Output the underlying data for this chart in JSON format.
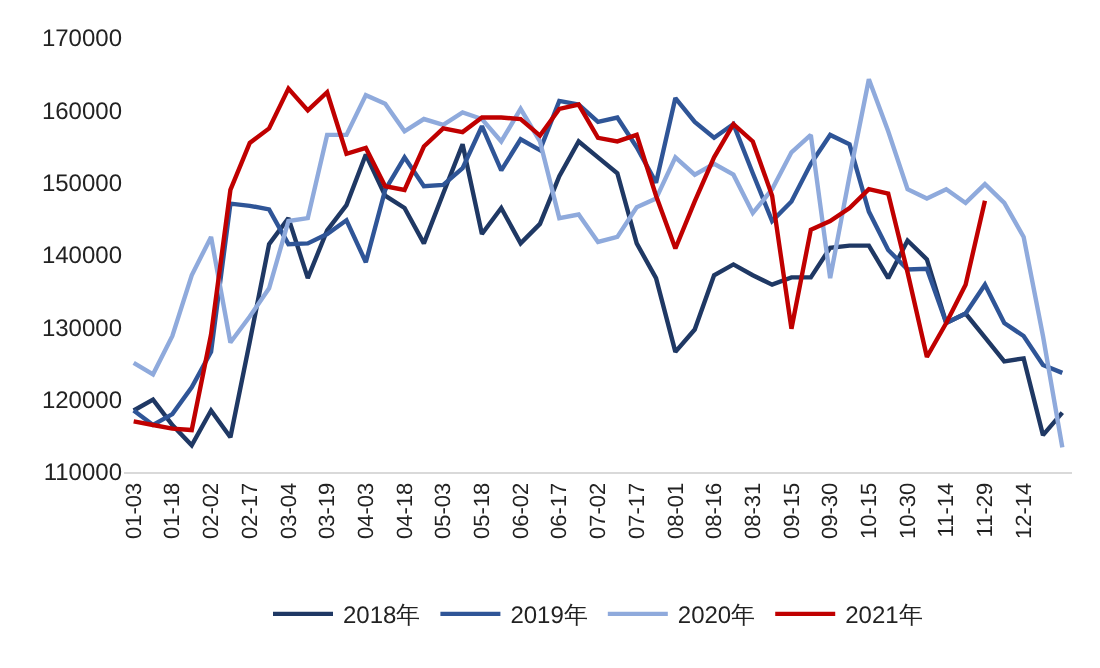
{
  "chart_data": {
    "type": "line",
    "categories": [
      "01-03",
      null,
      "01-18",
      null,
      "02-02",
      null,
      "02-17",
      null,
      "03-04",
      null,
      "03-19",
      null,
      "04-03",
      null,
      "04-18",
      null,
      "05-03",
      null,
      "05-18",
      null,
      "06-02",
      null,
      "06-17",
      null,
      "07-02",
      null,
      "07-17",
      null,
      "08-01",
      null,
      "08-16",
      null,
      "08-31",
      null,
      "09-15",
      null,
      "09-30",
      null,
      "10-15",
      null,
      "10-30",
      null,
      "11-14",
      null,
      "11-29",
      null,
      "12-14",
      null,
      null
    ],
    "ylim": [
      110000,
      170000
    ],
    "yticks": [
      110000,
      120000,
      130000,
      140000,
      150000,
      160000,
      170000
    ],
    "grid": false,
    "legend": "bottom",
    "marker": "none",
    "line_style": "solid",
    "series": [
      {
        "name": "2018年",
        "color": "#1f3864",
        "values": [
          118500,
          120000,
          116500,
          113700,
          118500,
          114800,
          128000,
          141500,
          145100,
          136800,
          143400,
          146900,
          153900,
          148200,
          146500,
          141600,
          148500,
          155300,
          142900,
          146500,
          141600,
          144300,
          150900,
          155700,
          153500,
          151300,
          141600,
          136800,
          126600,
          129700,
          137200,
          138700,
          137200,
          135900,
          136900,
          136900,
          141000,
          141300,
          141300,
          136800,
          142000,
          139400,
          130600,
          131900,
          128600,
          125300,
          125700,
          115100,
          118200
        ]
      },
      {
        "name": "2019年",
        "color": "#2f5597",
        "values": [
          118500,
          116500,
          118000,
          121700,
          126600,
          147100,
          146800,
          146300,
          141500,
          141600,
          142900,
          144800,
          139000,
          149000,
          153500,
          149500,
          149700,
          152000,
          157800,
          151700,
          156000,
          154500,
          161300,
          160800,
          158400,
          159000,
          154900,
          150000,
          161700,
          158400,
          156200,
          158100,
          151300,
          144700,
          147400,
          152600,
          156600,
          155300,
          146000,
          140700,
          138000,
          138100,
          130600,
          131900,
          135900,
          130600,
          128800,
          124800,
          123700
        ]
      },
      {
        "name": "2020年",
        "color": "#8faadc",
        "values": [
          125100,
          123500,
          128800,
          137200,
          142500,
          127900,
          131500,
          135400,
          144700,
          145100,
          156600,
          156600,
          162100,
          160900,
          157100,
          158800,
          158000,
          159700,
          158800,
          155700,
          160200,
          155700,
          145100,
          145600,
          141800,
          142500,
          146600,
          147800,
          153500,
          151100,
          152600,
          151100,
          145800,
          149100,
          154200,
          156600,
          136800,
          150900,
          164300,
          157100,
          149100,
          147800,
          149100,
          147200,
          149800,
          147200,
          142500,
          128800,
          113400
        ]
      },
      {
        "name": "2021年",
        "color": "#c00000",
        "values": [
          117000,
          116500,
          116000,
          115800,
          129000,
          149000,
          155500,
          157500,
          163000,
          160000,
          162500,
          154000,
          154800,
          149500,
          149000,
          155000,
          157500,
          157000,
          159000,
          159000,
          158800,
          156500,
          160200,
          160800,
          156200,
          155700,
          156600,
          148200,
          140900,
          147400,
          153500,
          158100,
          155700,
          148200,
          129800,
          143500,
          144700,
          146500,
          149100,
          148500,
          137600,
          125900,
          130600,
          135900,
          147500,
          null,
          null,
          null,
          null
        ]
      }
    ]
  }
}
